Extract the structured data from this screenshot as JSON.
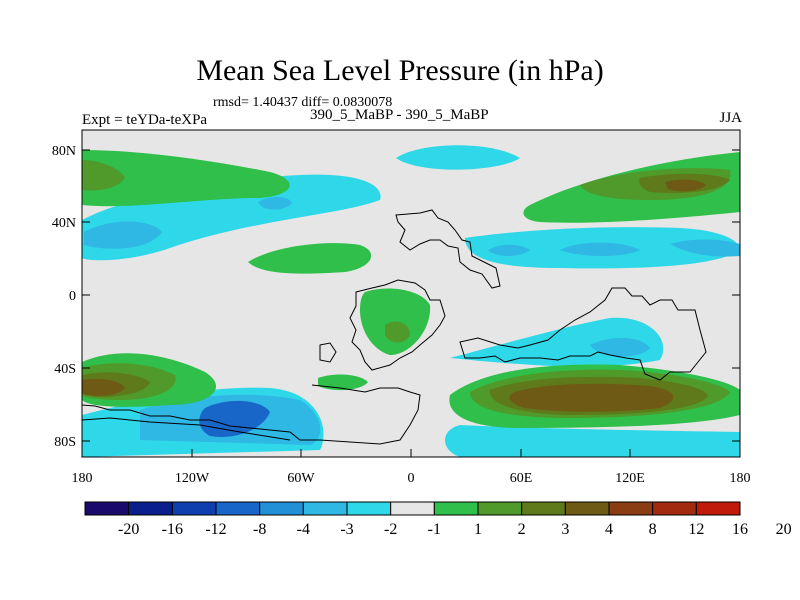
{
  "figure": {
    "title": "Mean Sea Level Pressure (in hPa)",
    "stats": "rmsd= 1.40437 diff= 0.0830078",
    "left_label": "Expt = teYDa-teXPa",
    "center_label": "390_5_MaBP - 390_5_MaBP",
    "right_label": "JJA"
  },
  "map": {
    "lat_ticks": [
      "80N",
      "40N",
      "0",
      "40S",
      "80S"
    ],
    "lon_ticks": [
      "180",
      "120W",
      "60W",
      "0",
      "60E",
      "120E",
      "180"
    ]
  },
  "colorbar": {
    "labels": [
      "-20",
      "-16",
      "-12",
      "-8",
      "-4",
      "-3",
      "-2",
      "-1",
      "1",
      "2",
      "3",
      "4",
      "8",
      "12",
      "16",
      "20"
    ],
    "colors": [
      "#1a0a6b",
      "#0b1f8c",
      "#0f3fae",
      "#1766c8",
      "#2290d6",
      "#2fb8e4",
      "#2fd8e8",
      "#e6e6e6",
      "#2fbf4a",
      "#4f9a2a",
      "#5e7a1a",
      "#6e5a14",
      "#8a3d12",
      "#a22a0e",
      "#c01a0a"
    ]
  },
  "colors": {
    "land_outline": "#000000",
    "background": "#e6e6e6"
  }
}
